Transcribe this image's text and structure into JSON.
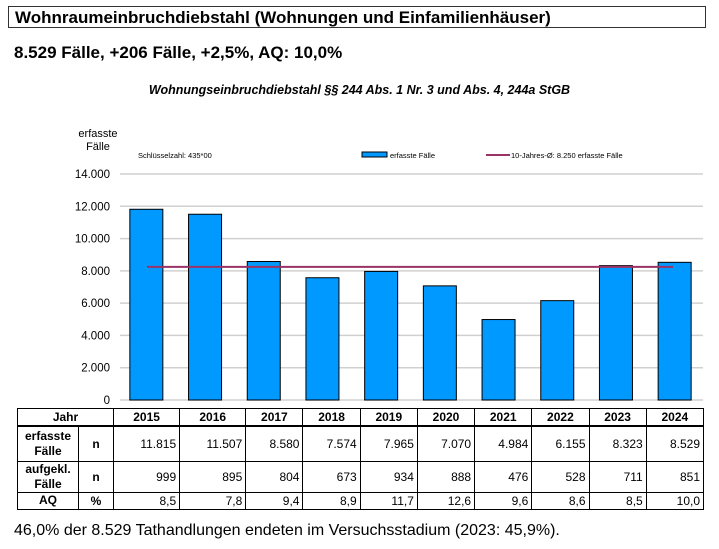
{
  "header": {
    "title": "Wohnraumeinbruchdiebstahl (Wohnungen und Einfamilienhäuser)",
    "summary": "8.529 Fälle, +206 Fälle, +2,5%, AQ: 10,0%"
  },
  "chart_data": {
    "type": "bar",
    "title": "Wohnungseinbruchdiebstahl §§ 244 Abs. 1 Nr. 3 und Abs. 4, 244a StGB",
    "ylabel": "erfasste Fälle",
    "annotation": "Schlüsselzahl: 435*00",
    "categories": [
      "2015",
      "2016",
      "2017",
      "2018",
      "2019",
      "2020",
      "2021",
      "2022",
      "2023",
      "2024"
    ],
    "series": [
      {
        "name": "erfasste Fälle",
        "values": [
          11815,
          11507,
          8580,
          7574,
          7965,
          7070,
          4984,
          6155,
          8323,
          8529
        ],
        "color": "#0099ff"
      }
    ],
    "reference_line": {
      "name": "10-Jahres-Ø: 8.250 erfasste Fälle",
      "value": 8250,
      "color": "#993366"
    },
    "ylim": [
      0,
      14000
    ],
    "yticks": [
      "0",
      "2.000",
      "4.000",
      "6.000",
      "8.000",
      "10.000",
      "12.000",
      "14.000"
    ],
    "grid": true,
    "legend": "top"
  },
  "table": {
    "header": "Jahr",
    "rows": [
      {
        "label": "erfasste Fälle",
        "unit": "n",
        "values": [
          "11.815",
          "11.507",
          "8.580",
          "7.574",
          "7.965",
          "7.070",
          "4.984",
          "6.155",
          "8.323",
          "8.529"
        ]
      },
      {
        "label": "aufgekl. Fälle",
        "unit": "n",
        "values": [
          "999",
          "895",
          "804",
          "673",
          "934",
          "888",
          "476",
          "528",
          "711",
          "851"
        ]
      },
      {
        "label": "AQ",
        "unit": "%",
        "values": [
          "8,5",
          "7,8",
          "9,4",
          "8,9",
          "11,7",
          "12,6",
          "9,6",
          "8,6",
          "8,5",
          "10,0"
        ]
      }
    ]
  },
  "footer": "46,0% der 8.529 Tathandlungen endeten im Versuchsstadium (2023: 45,9%)."
}
